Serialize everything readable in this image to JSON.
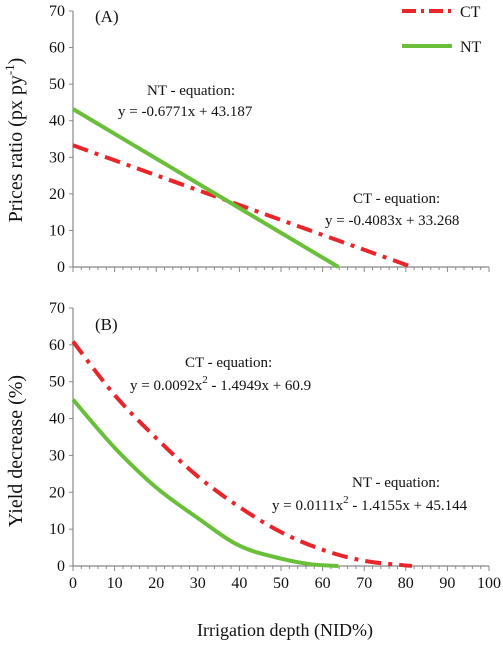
{
  "figure": {
    "xlabel": "Irrigation depth (NID%)",
    "legend": [
      {
        "name": "CT",
        "color": "#e8252b",
        "dash": "dash-dot"
      },
      {
        "name": "NT",
        "color": "#6abf3a",
        "dash": "solid"
      }
    ]
  },
  "chart_data": [
    {
      "type": "line",
      "panel_label": "(A)",
      "ylabel": "Prices ratio (px py",
      "ylabel_sup": "-1",
      "ylabel_end": ")",
      "xlim": [
        0,
        100
      ],
      "ylim": [
        0,
        70
      ],
      "xticks": [
        "0",
        "10",
        "20",
        "30",
        "40",
        "50",
        "60",
        "70",
        "80",
        "90",
        "100"
      ],
      "yticks": [
        "0",
        "10",
        "20",
        "30",
        "40",
        "50",
        "60",
        "70"
      ],
      "legend_position": "top-right",
      "series": [
        {
          "name": "CT",
          "color": "#e8252b",
          "dash": "dash-dot",
          "x": [
            0,
            10,
            20,
            30,
            40,
            50,
            60,
            70,
            81.5
          ],
          "y": [
            33.27,
            29.18,
            25.1,
            21.02,
            16.94,
            12.85,
            8.77,
            4.69,
            0
          ]
        },
        {
          "name": "NT",
          "color": "#6abf3a",
          "dash": "solid",
          "x": [
            0,
            10,
            20,
            30,
            40,
            50,
            63.8
          ],
          "y": [
            43.19,
            36.42,
            29.65,
            22.87,
            16.1,
            9.33,
            0
          ]
        }
      ],
      "annotations": [
        {
          "label": "NT - equation:",
          "series": "NT"
        },
        {
          "label": "y = -0.6771x + 43.187",
          "series": "NT"
        },
        {
          "label": "CT - equation:",
          "series": "CT"
        },
        {
          "label": "y = -0.4083x + 33.268",
          "series": "CT"
        }
      ]
    },
    {
      "type": "line",
      "panel_label": "(B)",
      "ylabel": "Yield decrease (%)",
      "xlim": [
        0,
        100
      ],
      "ylim": [
        0,
        70
      ],
      "xticks": [
        "0",
        "10",
        "20",
        "30",
        "40",
        "50",
        "60",
        "70",
        "80",
        "90",
        "100"
      ],
      "yticks": [
        "0",
        "10",
        "20",
        "30",
        "40",
        "50",
        "60",
        "70"
      ],
      "series": [
        {
          "name": "CT",
          "color": "#e8252b",
          "dash": "dash-dot",
          "x": [
            0,
            10,
            20,
            30,
            40,
            50,
            60,
            70,
            81.5
          ],
          "y": [
            60.9,
            46.4,
            34.7,
            24.3,
            16.0,
            9.2,
            4.4,
            1.4,
            0
          ]
        },
        {
          "name": "NT",
          "color": "#6abf3a",
          "dash": "solid",
          "x": [
            0,
            10,
            20,
            30,
            40,
            50,
            57,
            63.8
          ],
          "y": [
            45.14,
            32.1,
            21.3,
            13.0,
            5.5,
            2.0,
            0.5,
            0
          ]
        }
      ],
      "annotations": [
        {
          "label": "CT - equation:",
          "series": "CT"
        },
        {
          "label": "y = 0.0092x",
          "sup": "2",
          "rest": " - 1.4949x + 60.9",
          "series": "CT"
        },
        {
          "label": "NT - equation:",
          "series": "NT"
        },
        {
          "label": "y = 0.0111x",
          "sup": "2",
          "rest": " - 1.4155x + 45.144",
          "series": "NT"
        }
      ]
    }
  ]
}
